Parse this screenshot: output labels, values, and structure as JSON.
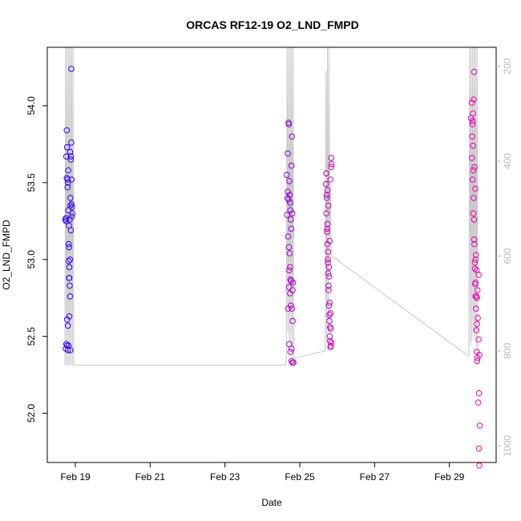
{
  "chart_data": {
    "type": "scatter",
    "title": "ORCAS RF12-19 O2_LND_FMPD",
    "xlabel": "Date",
    "ylabel": "O2_LND_FMPD",
    "x_ticks": [
      "Feb 19",
      "Feb 21",
      "Feb 23",
      "Feb 25",
      "Feb 27",
      "Feb 29"
    ],
    "y_ticks": [
      "52.0",
      "52.5",
      "53.0",
      "53.5",
      "54.0"
    ],
    "y2_ticks": [
      "200",
      "400",
      "600",
      "800",
      "1000"
    ],
    "xlim_days": [
      18.25,
      30.25
    ],
    "ylim": [
      51.68,
      54.38
    ],
    "y2lim": [
      1035,
      160
    ],
    "colors": {
      "start": "#2200ff",
      "end": "#ff00aa",
      "line": "#c8c8c8"
    },
    "series": [
      {
        "color_from": 0.0,
        "color_to": 0.15,
        "x": [
          18.73,
          18.75,
          18.76,
          18.77,
          18.78,
          18.79,
          18.8,
          18.81,
          18.82,
          18.83,
          18.84,
          18.85,
          18.86,
          18.87,
          18.88,
          18.89,
          18.9,
          18.91,
          18.92,
          18.74,
          18.76,
          18.78,
          18.8,
          18.82,
          18.84,
          18.86,
          18.88,
          18.9,
          18.79,
          18.81,
          18.83,
          18.85,
          18.87,
          18.89,
          18.77,
          18.82,
          18.86,
          18.88,
          18.84,
          18.8,
          18.91,
          18.75,
          18.78,
          18.83,
          18.87
        ],
        "y": [
          53.26,
          53.27,
          53.67,
          53.84,
          53.73,
          53.52,
          53.5,
          53.32,
          53.1,
          53.08,
          52.95,
          52.83,
          52.76,
          53.4,
          53.65,
          54.24,
          53.36,
          53.34,
          53.3,
          52.42,
          52.45,
          52.61,
          52.41,
          52.44,
          52.88,
          53.7,
          53.67,
          53.52,
          53.47,
          53.58,
          53.22,
          53.26,
          53.35,
          53.76,
          53.53,
          52.99,
          53.0,
          53.19,
          52.63,
          52.57,
          53.28,
          53.25,
          52.44,
          52.88,
          52.41
        ]
      },
      {
        "color_from": 0.45,
        "color_to": 0.7,
        "x": [
          24.65,
          24.67,
          24.68,
          24.7,
          24.71,
          24.72,
          24.73,
          24.74,
          24.75,
          24.76,
          24.77,
          24.78,
          24.79,
          24.8,
          24.81,
          24.82,
          24.69,
          24.71,
          24.73,
          24.75,
          24.77,
          24.79,
          24.81,
          24.66,
          24.68,
          24.7,
          24.72,
          24.74,
          24.76,
          24.78,
          24.8,
          24.83,
          24.69,
          24.72,
          24.75,
          24.78,
          24.74,
          24.71,
          24.77
        ],
        "y": [
          53.55,
          53.4,
          53.69,
          53.89,
          53.88,
          53.51,
          53.42,
          53.37,
          53.32,
          53.26,
          53.2,
          53.61,
          53.8,
          53.3,
          52.8,
          52.85,
          53.15,
          53.08,
          53.04,
          52.87,
          52.86,
          52.68,
          52.6,
          53.29,
          53.44,
          53.39,
          52.93,
          52.78,
          52.7,
          52.42,
          52.33,
          52.33,
          52.68,
          52.45,
          52.4,
          52.34,
          52.95,
          52.82,
          52.86
        ]
      },
      {
        "color_from": 0.65,
        "color_to": 0.85,
        "x": [
          25.7,
          25.71,
          25.72,
          25.73,
          25.74,
          25.75,
          25.76,
          25.77,
          25.78,
          25.79,
          25.8,
          25.81,
          25.82,
          25.83,
          25.84,
          25.85,
          25.72,
          25.74,
          25.76,
          25.78,
          25.8,
          25.82,
          25.84,
          25.71,
          25.73,
          25.75,
          25.77,
          25.79,
          25.81,
          25.83,
          25.74,
          25.78,
          25.82,
          25.76,
          25.8,
          25.84
        ],
        "y": [
          53.49,
          53.56,
          53.42,
          53.2,
          53.1,
          52.98,
          52.91,
          52.83,
          52.7,
          52.6,
          52.5,
          52.47,
          52.43,
          52.55,
          53.66,
          53.62,
          53.4,
          53.23,
          53.05,
          52.89,
          52.72,
          52.65,
          52.46,
          53.3,
          53.18,
          53.0,
          52.8,
          52.64,
          52.56,
          52.44,
          53.45,
          52.95,
          53.52,
          53.35,
          53.12,
          53.6
        ]
      },
      {
        "color_from": 0.85,
        "color_to": 1.0,
        "x": [
          29.58,
          29.6,
          29.62,
          29.63,
          29.64,
          29.65,
          29.66,
          29.67,
          29.68,
          29.69,
          29.7,
          29.71,
          29.72,
          29.73,
          29.74,
          29.75,
          29.6,
          29.62,
          29.64,
          29.66,
          29.68,
          29.7,
          29.72,
          29.74,
          29.61,
          29.63,
          29.65,
          29.67,
          29.69,
          29.71,
          29.73,
          29.75,
          29.62,
          29.66,
          29.7,
          29.74,
          29.76,
          29.78,
          29.8,
          29.79,
          29.77,
          29.81,
          29.79,
          29.8,
          29.78
        ],
        "y": [
          53.92,
          54.02,
          53.9,
          53.74,
          53.58,
          53.4,
          53.26,
          53.1,
          52.94,
          52.84,
          52.76,
          52.68,
          52.54,
          52.4,
          52.34,
          52.36,
          53.66,
          53.52,
          53.3,
          53.13,
          52.98,
          52.85,
          52.76,
          52.58,
          53.8,
          53.95,
          54.04,
          53.6,
          53.46,
          53.03,
          52.93,
          52.8,
          53.88,
          54.22,
          53.0,
          52.75,
          52.62,
          52.48,
          52.38,
          52.13,
          52.07,
          51.92,
          51.77,
          51.66,
          52.9
        ]
      }
    ],
    "altitude_line": {
      "y2_axis": true,
      "x": [
        18.72,
        18.74,
        18.76,
        18.78,
        18.8,
        18.82,
        18.84,
        18.86,
        18.88,
        18.9,
        18.92,
        18.94,
        18.96,
        24.62,
        24.64,
        24.66,
        24.68,
        24.7,
        24.72,
        24.74,
        24.76,
        24.78,
        24.8,
        24.82,
        24.84,
        24.86,
        25.68,
        25.7,
        25.72,
        25.74,
        25.76,
        25.78,
        25.8,
        25.82,
        25.84,
        25.86,
        29.5,
        29.52,
        29.54,
        29.56,
        29.58,
        29.6,
        29.62,
        29.64,
        29.66,
        29.68,
        29.7,
        29.72,
        29.74,
        29.76
      ],
      "y": [
        830,
        160,
        830,
        160,
        830,
        160,
        830,
        160,
        830,
        160,
        830,
        160,
        830,
        830,
        810,
        160,
        760,
        160,
        780,
        160,
        790,
        160,
        800,
        160,
        815,
        815,
        800,
        210,
        780,
        160,
        760,
        160,
        560,
        450,
        600,
        600,
        810,
        810,
        160,
        790,
        160,
        780,
        160,
        760,
        160,
        770,
        160,
        790,
        160,
        810
      ]
    }
  }
}
